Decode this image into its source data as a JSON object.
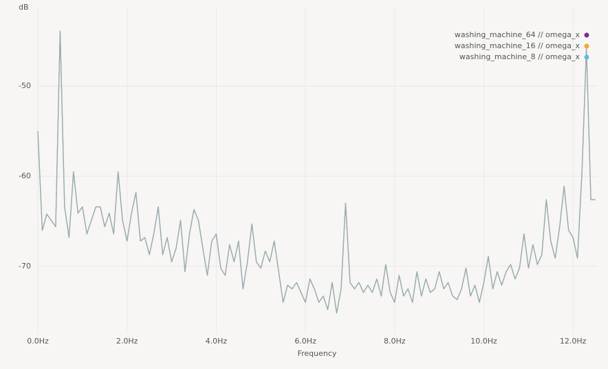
{
  "chart_data": {
    "type": "line",
    "y_label": "dB",
    "x_label": "Frequency",
    "x": [
      0,
      0.1,
      0.2,
      0.3,
      0.4,
      0.5,
      0.6,
      0.7,
      0.8,
      0.9,
      1.0,
      1.1,
      1.2,
      1.3,
      1.4,
      1.5,
      1.6,
      1.7,
      1.8,
      1.9,
      2.0,
      2.1,
      2.2,
      2.3,
      2.4,
      2.5,
      2.6,
      2.7,
      2.8,
      2.9,
      3.0,
      3.1,
      3.2,
      3.3,
      3.4,
      3.5,
      3.6,
      3.7,
      3.8,
      3.9,
      4.0,
      4.1,
      4.2,
      4.3,
      4.4,
      4.5,
      4.6,
      4.7,
      4.8,
      4.9,
      5.0,
      5.1,
      5.2,
      5.3,
      5.4,
      5.5,
      5.6,
      5.7,
      5.8,
      5.9,
      6.0,
      6.1,
      6.2,
      6.3,
      6.4,
      6.5,
      6.6,
      6.7,
      6.8,
      6.9,
      7.0,
      7.1,
      7.2,
      7.3,
      7.4,
      7.5,
      7.6,
      7.7,
      7.8,
      7.9,
      8.0,
      8.1,
      8.2,
      8.3,
      8.4,
      8.5,
      8.6,
      8.7,
      8.8,
      8.9,
      9.0,
      9.1,
      9.2,
      9.3,
      9.4,
      9.5,
      9.6,
      9.7,
      9.8,
      9.9,
      10.0,
      10.1,
      10.2,
      10.3,
      10.4,
      10.5,
      10.6,
      10.7,
      10.8,
      10.9,
      11.0,
      11.1,
      11.2,
      11.3,
      11.4,
      11.5,
      11.6,
      11.7,
      11.8,
      11.9,
      12.0,
      12.1,
      12.2,
      12.3,
      12.4,
      12.5
    ],
    "series": [
      {
        "name": "washing_machine_64 // omega_x",
        "color": "#7b2d8b",
        "values": [
          -55,
          -66,
          -64.2,
          -64.9,
          -65.6,
          -43.9,
          -63.4,
          -66.8,
          -59.5,
          -64.1,
          -63.4,
          -66.4,
          -64.9,
          -63.4,
          -63.4,
          -65.6,
          -64.1,
          -66.4,
          -59.5,
          -64.9,
          -67.2,
          -64.1,
          -61.8,
          -67.2,
          -66.8,
          -68.7,
          -66.4,
          -63.4,
          -68.7,
          -66.8,
          -69.5,
          -68,
          -64.9,
          -70.6,
          -66.4,
          -63.7,
          -64.9,
          -68,
          -71,
          -67.2,
          -66.4,
          -70.2,
          -71,
          -67.6,
          -69.5,
          -67.2,
          -72.5,
          -69.5,
          -65.3,
          -69.5,
          -70.2,
          -68.3,
          -69.5,
          -67.2,
          -70.6,
          -74,
          -72.1,
          -72.5,
          -71.8,
          -72.9,
          -74,
          -71.4,
          -72.5,
          -74,
          -73.3,
          -74.8,
          -71.8,
          -75.2,
          -72.5,
          -63,
          -71.8,
          -72.5,
          -71.8,
          -72.9,
          -72.1,
          -72.9,
          -71.4,
          -73.3,
          -69.8,
          -72.9,
          -74,
          -71,
          -73.3,
          -72.5,
          -74,
          -70.6,
          -73.3,
          -71.4,
          -72.9,
          -72.5,
          -70.6,
          -72.5,
          -71.8,
          -73.3,
          -73.7,
          -72.5,
          -70.2,
          -73.3,
          -72.1,
          -74,
          -71.8,
          -68.9,
          -72.5,
          -70.6,
          -72.1,
          -70.6,
          -69.8,
          -71.4,
          -70.2,
          -66.4,
          -70.2,
          -67.6,
          -69.8,
          -68.7,
          -62.6,
          -67.2,
          -69.1,
          -65.6,
          -61.1,
          -66,
          -66.8,
          -69.1,
          -59.5,
          -45.8,
          -62.6,
          -62.6
        ]
      },
      {
        "name": "washing_machine_16 // omega_x",
        "color": "#f0a830",
        "values": [
          -55,
          -66,
          -64.2,
          -64.9,
          -65.6,
          -43.9,
          -63.4,
          -66.8,
          -59.5,
          -64.1,
          -63.4,
          -66.4,
          -64.9,
          -63.4,
          -63.4,
          -65.6,
          -64.1,
          -66.4,
          -59.5,
          -64.9,
          -67.2,
          -64.1,
          -61.8,
          -67.2,
          -66.8,
          -68.7,
          -66.4,
          -63.4,
          -68.7,
          -66.8,
          -69.5,
          -68,
          -64.9,
          -70.6,
          -66.4,
          -63.7,
          -64.9,
          -68,
          -71,
          -67.2,
          -66.4,
          -70.2,
          -71,
          -67.6,
          -69.5,
          -67.2,
          -72.5,
          -69.5,
          -65.3,
          -69.5,
          -70.2,
          -68.3,
          -69.5,
          -67.2,
          -70.6,
          -74,
          -72.1,
          -72.5,
          -71.8,
          -72.9,
          -74,
          -71.4,
          -72.5,
          -74,
          -73.3,
          -74.8,
          -71.8,
          -75.2,
          -72.5,
          -63,
          -71.8,
          -72.5,
          -71.8,
          -72.9,
          -72.1,
          -72.9,
          -71.4,
          -73.3,
          -69.8,
          -72.9,
          -74,
          -71,
          -73.3,
          -72.5,
          -74,
          -70.6,
          -73.3,
          -71.4,
          -72.9,
          -72.5,
          -70.6,
          -72.5,
          -71.8,
          -73.3,
          -73.7,
          -72.5,
          -70.2,
          -73.3,
          -72.1,
          -74,
          -71.8,
          -68.9,
          -72.5,
          -70.6,
          -72.1,
          -70.6,
          -69.8,
          -71.4,
          -70.2,
          -66.4,
          -70.2,
          -67.6,
          -69.8,
          -68.7,
          -62.6,
          -67.2,
          -69.1,
          -65.6,
          -61.1,
          -66,
          -66.8,
          -69.1,
          -59.5,
          -45.8,
          -62.6,
          -62.6
        ]
      },
      {
        "name": "washing_machine_8 // omega_x",
        "color": "#5bbde4",
        "values": [
          -55,
          -66,
          -64.2,
          -64.9,
          -65.6,
          -43.9,
          -63.4,
          -66.8,
          -59.5,
          -64.1,
          -63.4,
          -66.4,
          -64.9,
          -63.4,
          -63.4,
          -65.6,
          -64.1,
          -66.4,
          -59.5,
          -64.9,
          -67.2,
          -64.1,
          -61.8,
          -67.2,
          -66.8,
          -68.7,
          -66.4,
          -63.4,
          -68.7,
          -66.8,
          -69.5,
          -68,
          -64.9,
          -70.6,
          -66.4,
          -63.7,
          -64.9,
          -68,
          -71,
          -67.2,
          -66.4,
          -70.2,
          -71,
          -67.6,
          -69.5,
          -67.2,
          -72.5,
          -69.5,
          -65.3,
          -69.5,
          -70.2,
          -68.3,
          -69.5,
          -67.2,
          -70.6,
          -74,
          -72.1,
          -72.5,
          -71.8,
          -72.9,
          -74,
          -71.4,
          -72.5,
          -74,
          -73.3,
          -74.8,
          -71.8,
          -75.2,
          -72.5,
          -63,
          -71.8,
          -72.5,
          -71.8,
          -72.9,
          -72.1,
          -72.9,
          -71.4,
          -73.3,
          -69.8,
          -72.9,
          -74,
          -71,
          -73.3,
          -72.5,
          -74,
          -70.6,
          -73.3,
          -71.4,
          -72.9,
          -72.5,
          -70.6,
          -72.5,
          -71.8,
          -73.3,
          -73.7,
          -72.5,
          -70.2,
          -73.3,
          -72.1,
          -74,
          -71.8,
          -68.9,
          -72.5,
          -70.6,
          -72.1,
          -70.6,
          -69.8,
          -71.4,
          -70.2,
          -66.4,
          -70.2,
          -67.6,
          -69.8,
          -68.7,
          -62.6,
          -67.2,
          -69.1,
          -65.6,
          -61.1,
          -66,
          -66.8,
          -69.1,
          -59.5,
          -45.8,
          -62.6,
          -62.6
        ]
      }
    ],
    "xlim": [
      0,
      12.54
    ],
    "ylim": [
      -77.5,
      -41.2
    ],
    "xticks": [
      {
        "value": 0,
        "label": "0.0Hz"
      },
      {
        "value": 2,
        "label": "2.0Hz"
      },
      {
        "value": 4,
        "label": "4.0Hz"
      },
      {
        "value": 6,
        "label": "6.0Hz"
      },
      {
        "value": 8,
        "label": "8.0Hz"
      },
      {
        "value": 10,
        "label": "10.0Hz"
      },
      {
        "value": 12,
        "label": "12.0Hz"
      }
    ],
    "yticks": [
      -50,
      -60,
      -70
    ],
    "grid": true,
    "legend": "top-right"
  }
}
